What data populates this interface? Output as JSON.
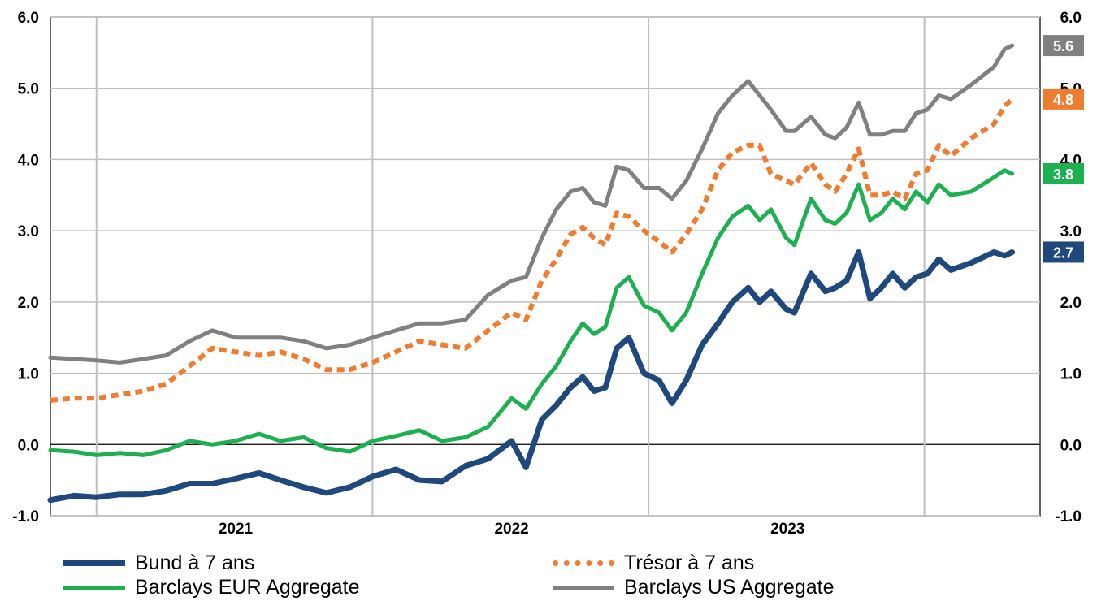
{
  "chart_data": {
    "type": "line",
    "title": "",
    "xlabel": "",
    "ylabel": "",
    "ylim": [
      -1.0,
      6.0
    ],
    "y_ticks": [
      "6.0",
      "5.0",
      "4.0",
      "3.0",
      "2.0",
      "1.0",
      "0.0",
      "-1.0"
    ],
    "y_ticks_right": [
      "6.0",
      "5.0",
      "4.0",
      "3.0",
      "2.0",
      "1.0",
      "0.0",
      "-1.0"
    ],
    "x_tick_labels": [
      "2021",
      "2022",
      "2023"
    ],
    "x_range": [
      "2020-05",
      "2023-12"
    ],
    "grid": true,
    "legend_position": "bottom",
    "series": [
      {
        "name": "Bund à 7 ans",
        "color": "#1f497d",
        "style": "solid",
        "end_label": "2.7",
        "points": [
          [
            "2020-05-01",
            -0.78
          ],
          [
            "2020-06-01",
            -0.72
          ],
          [
            "2020-07-01",
            -0.74
          ],
          [
            "2020-08-01",
            -0.7
          ],
          [
            "2020-09-01",
            -0.7
          ],
          [
            "2020-10-01",
            -0.65
          ],
          [
            "2020-11-01",
            -0.55
          ],
          [
            "2020-12-01",
            -0.55
          ],
          [
            "2021-01-01",
            -0.48
          ],
          [
            "2021-02-01",
            -0.4
          ],
          [
            "2021-03-01",
            -0.5
          ],
          [
            "2021-04-01",
            -0.6
          ],
          [
            "2021-05-01",
            -0.68
          ],
          [
            "2021-06-01",
            -0.6
          ],
          [
            "2021-07-01",
            -0.45
          ],
          [
            "2021-08-01",
            -0.35
          ],
          [
            "2021-09-01",
            -0.5
          ],
          [
            "2021-10-01",
            -0.52
          ],
          [
            "2021-11-01",
            -0.3
          ],
          [
            "2021-12-01",
            -0.2
          ],
          [
            "2022-01-01",
            0.05
          ],
          [
            "2022-01-20",
            -0.32
          ],
          [
            "2022-02-10",
            0.35
          ],
          [
            "2022-03-01",
            0.55
          ],
          [
            "2022-03-20",
            0.8
          ],
          [
            "2022-04-05",
            0.95
          ],
          [
            "2022-04-20",
            0.75
          ],
          [
            "2022-05-05",
            0.8
          ],
          [
            "2022-05-20",
            1.35
          ],
          [
            "2022-06-05",
            1.5
          ],
          [
            "2022-06-25",
            1.0
          ],
          [
            "2022-07-15",
            0.9
          ],
          [
            "2022-08-01",
            0.58
          ],
          [
            "2022-08-20",
            0.9
          ],
          [
            "2022-09-10",
            1.4
          ],
          [
            "2022-10-01",
            1.7
          ],
          [
            "2022-10-20",
            2.0
          ],
          [
            "2022-11-10",
            2.2
          ],
          [
            "2022-11-25",
            2.0
          ],
          [
            "2022-12-10",
            2.15
          ],
          [
            "2022-12-30",
            1.9
          ],
          [
            "2023-01-10",
            1.85
          ],
          [
            "2023-02-01",
            2.4
          ],
          [
            "2023-02-20",
            2.15
          ],
          [
            "2023-03-05",
            2.2
          ],
          [
            "2023-03-20",
            2.3
          ],
          [
            "2023-04-05",
            2.7
          ],
          [
            "2023-04-20",
            2.05
          ],
          [
            "2023-05-05",
            2.2
          ],
          [
            "2023-05-20",
            2.4
          ],
          [
            "2023-06-05",
            2.2
          ],
          [
            "2023-06-20",
            2.35
          ],
          [
            "2023-07-05",
            2.4
          ],
          [
            "2023-07-20",
            2.6
          ],
          [
            "2023-08-05",
            2.45
          ],
          [
            "2023-09-01",
            2.55
          ],
          [
            "2023-10-01",
            2.7
          ],
          [
            "2023-10-15",
            2.65
          ],
          [
            "2023-10-25",
            2.7
          ]
        ]
      },
      {
        "name": "Trésor à 7 ans",
        "color": "#ed7d31",
        "style": "dotted",
        "end_label": "4.8",
        "points": [
          [
            "2020-05-01",
            0.62
          ],
          [
            "2020-06-01",
            0.65
          ],
          [
            "2020-07-01",
            0.65
          ],
          [
            "2020-08-01",
            0.7
          ],
          [
            "2020-09-01",
            0.75
          ],
          [
            "2020-10-01",
            0.85
          ],
          [
            "2020-11-01",
            1.1
          ],
          [
            "2020-12-01",
            1.35
          ],
          [
            "2021-01-01",
            1.3
          ],
          [
            "2021-02-01",
            1.25
          ],
          [
            "2021-03-01",
            1.3
          ],
          [
            "2021-04-01",
            1.2
          ],
          [
            "2021-05-01",
            1.05
          ],
          [
            "2021-06-01",
            1.05
          ],
          [
            "2021-07-01",
            1.15
          ],
          [
            "2021-08-01",
            1.3
          ],
          [
            "2021-09-01",
            1.45
          ],
          [
            "2021-10-01",
            1.4
          ],
          [
            "2021-11-01",
            1.35
          ],
          [
            "2021-12-01",
            1.6
          ],
          [
            "2022-01-01",
            1.85
          ],
          [
            "2022-01-20",
            1.75
          ],
          [
            "2022-02-10",
            2.3
          ],
          [
            "2022-03-01",
            2.6
          ],
          [
            "2022-03-20",
            2.95
          ],
          [
            "2022-04-05",
            3.05
          ],
          [
            "2022-04-20",
            2.9
          ],
          [
            "2022-05-05",
            2.8
          ],
          [
            "2022-05-20",
            3.25
          ],
          [
            "2022-06-05",
            3.2
          ],
          [
            "2022-06-25",
            3.0
          ],
          [
            "2022-07-15",
            2.85
          ],
          [
            "2022-08-01",
            2.7
          ],
          [
            "2022-08-20",
            2.95
          ],
          [
            "2022-09-10",
            3.3
          ],
          [
            "2022-10-01",
            3.85
          ],
          [
            "2022-10-20",
            4.1
          ],
          [
            "2022-11-10",
            4.2
          ],
          [
            "2022-11-25",
            4.2
          ],
          [
            "2022-12-10",
            3.8
          ],
          [
            "2022-12-30",
            3.7
          ],
          [
            "2023-01-10",
            3.65
          ],
          [
            "2023-02-01",
            3.95
          ],
          [
            "2023-02-20",
            3.65
          ],
          [
            "2023-03-05",
            3.55
          ],
          [
            "2023-03-20",
            3.8
          ],
          [
            "2023-04-05",
            4.15
          ],
          [
            "2023-04-20",
            3.5
          ],
          [
            "2023-05-05",
            3.5
          ],
          [
            "2023-05-20",
            3.55
          ],
          [
            "2023-06-05",
            3.45
          ],
          [
            "2023-06-20",
            3.8
          ],
          [
            "2023-07-05",
            3.85
          ],
          [
            "2023-07-20",
            4.2
          ],
          [
            "2023-08-05",
            4.05
          ],
          [
            "2023-09-01",
            4.3
          ],
          [
            "2023-10-01",
            4.5
          ],
          [
            "2023-10-15",
            4.75
          ],
          [
            "2023-10-25",
            4.85
          ]
        ]
      },
      {
        "name": "Barclays EUR Aggregate",
        "color": "#1db050",
        "style": "solid",
        "end_label": "3.8",
        "points": [
          [
            "2020-05-01",
            -0.08
          ],
          [
            "2020-06-01",
            -0.1
          ],
          [
            "2020-07-01",
            -0.15
          ],
          [
            "2020-08-01",
            -0.12
          ],
          [
            "2020-09-01",
            -0.15
          ],
          [
            "2020-10-01",
            -0.08
          ],
          [
            "2020-11-01",
            0.05
          ],
          [
            "2020-12-01",
            0.0
          ],
          [
            "2021-01-01",
            0.05
          ],
          [
            "2021-02-01",
            0.15
          ],
          [
            "2021-03-01",
            0.05
          ],
          [
            "2021-04-01",
            0.1
          ],
          [
            "2021-05-01",
            -0.05
          ],
          [
            "2021-06-01",
            -0.1
          ],
          [
            "2021-07-01",
            0.05
          ],
          [
            "2021-08-01",
            0.12
          ],
          [
            "2021-09-01",
            0.2
          ],
          [
            "2021-10-01",
            0.05
          ],
          [
            "2021-11-01",
            0.1
          ],
          [
            "2021-12-01",
            0.25
          ],
          [
            "2022-01-01",
            0.65
          ],
          [
            "2022-01-20",
            0.5
          ],
          [
            "2022-02-10",
            0.85
          ],
          [
            "2022-03-01",
            1.1
          ],
          [
            "2022-03-20",
            1.45
          ],
          [
            "2022-04-05",
            1.7
          ],
          [
            "2022-04-20",
            1.55
          ],
          [
            "2022-05-05",
            1.65
          ],
          [
            "2022-05-20",
            2.2
          ],
          [
            "2022-06-05",
            2.35
          ],
          [
            "2022-06-25",
            1.95
          ],
          [
            "2022-07-15",
            1.85
          ],
          [
            "2022-08-01",
            1.6
          ],
          [
            "2022-08-20",
            1.85
          ],
          [
            "2022-09-10",
            2.4
          ],
          [
            "2022-10-01",
            2.9
          ],
          [
            "2022-10-20",
            3.2
          ],
          [
            "2022-11-10",
            3.35
          ],
          [
            "2022-11-25",
            3.15
          ],
          [
            "2022-12-10",
            3.3
          ],
          [
            "2022-12-30",
            2.9
          ],
          [
            "2023-01-10",
            2.8
          ],
          [
            "2023-02-01",
            3.45
          ],
          [
            "2023-02-20",
            3.15
          ],
          [
            "2023-03-05",
            3.1
          ],
          [
            "2023-03-20",
            3.25
          ],
          [
            "2023-04-05",
            3.65
          ],
          [
            "2023-04-20",
            3.15
          ],
          [
            "2023-05-05",
            3.25
          ],
          [
            "2023-05-20",
            3.45
          ],
          [
            "2023-06-05",
            3.3
          ],
          [
            "2023-06-20",
            3.55
          ],
          [
            "2023-07-05",
            3.4
          ],
          [
            "2023-07-20",
            3.65
          ],
          [
            "2023-08-05",
            3.5
          ],
          [
            "2023-09-01",
            3.55
          ],
          [
            "2023-10-01",
            3.75
          ],
          [
            "2023-10-15",
            3.85
          ],
          [
            "2023-10-25",
            3.8
          ]
        ]
      },
      {
        "name": "Barclays US Aggregate",
        "color": "#808080",
        "style": "solid",
        "end_label": "5.6",
        "points": [
          [
            "2020-05-01",
            1.22
          ],
          [
            "2020-06-01",
            1.2
          ],
          [
            "2020-07-01",
            1.18
          ],
          [
            "2020-08-01",
            1.15
          ],
          [
            "2020-09-01",
            1.2
          ],
          [
            "2020-10-01",
            1.25
          ],
          [
            "2020-11-01",
            1.45
          ],
          [
            "2020-12-01",
            1.6
          ],
          [
            "2021-01-01",
            1.5
          ],
          [
            "2021-02-01",
            1.5
          ],
          [
            "2021-03-01",
            1.5
          ],
          [
            "2021-04-01",
            1.45
          ],
          [
            "2021-05-01",
            1.35
          ],
          [
            "2021-06-01",
            1.4
          ],
          [
            "2021-07-01",
            1.5
          ],
          [
            "2021-08-01",
            1.6
          ],
          [
            "2021-09-01",
            1.7
          ],
          [
            "2021-10-01",
            1.7
          ],
          [
            "2021-11-01",
            1.75
          ],
          [
            "2021-12-01",
            2.1
          ],
          [
            "2022-01-01",
            2.3
          ],
          [
            "2022-01-20",
            2.35
          ],
          [
            "2022-02-10",
            2.9
          ],
          [
            "2022-03-01",
            3.3
          ],
          [
            "2022-03-20",
            3.55
          ],
          [
            "2022-04-05",
            3.6
          ],
          [
            "2022-04-20",
            3.4
          ],
          [
            "2022-05-05",
            3.35
          ],
          [
            "2022-05-20",
            3.9
          ],
          [
            "2022-06-05",
            3.85
          ],
          [
            "2022-06-25",
            3.6
          ],
          [
            "2022-07-15",
            3.6
          ],
          [
            "2022-08-01",
            3.45
          ],
          [
            "2022-08-20",
            3.7
          ],
          [
            "2022-09-10",
            4.15
          ],
          [
            "2022-10-01",
            4.65
          ],
          [
            "2022-10-20",
            4.9
          ],
          [
            "2022-11-10",
            5.1
          ],
          [
            "2022-11-25",
            4.9
          ],
          [
            "2022-12-10",
            4.7
          ],
          [
            "2022-12-30",
            4.4
          ],
          [
            "2023-01-10",
            4.4
          ],
          [
            "2023-02-01",
            4.6
          ],
          [
            "2023-02-20",
            4.35
          ],
          [
            "2023-03-05",
            4.3
          ],
          [
            "2023-03-20",
            4.45
          ],
          [
            "2023-04-05",
            4.8
          ],
          [
            "2023-04-20",
            4.35
          ],
          [
            "2023-05-05",
            4.35
          ],
          [
            "2023-05-20",
            4.4
          ],
          [
            "2023-06-05",
            4.4
          ],
          [
            "2023-06-20",
            4.65
          ],
          [
            "2023-07-05",
            4.7
          ],
          [
            "2023-07-20",
            4.9
          ],
          [
            "2023-08-05",
            4.85
          ],
          [
            "2023-09-01",
            5.05
          ],
          [
            "2023-10-01",
            5.3
          ],
          [
            "2023-10-15",
            5.55
          ],
          [
            "2023-10-25",
            5.6
          ]
        ]
      }
    ]
  }
}
